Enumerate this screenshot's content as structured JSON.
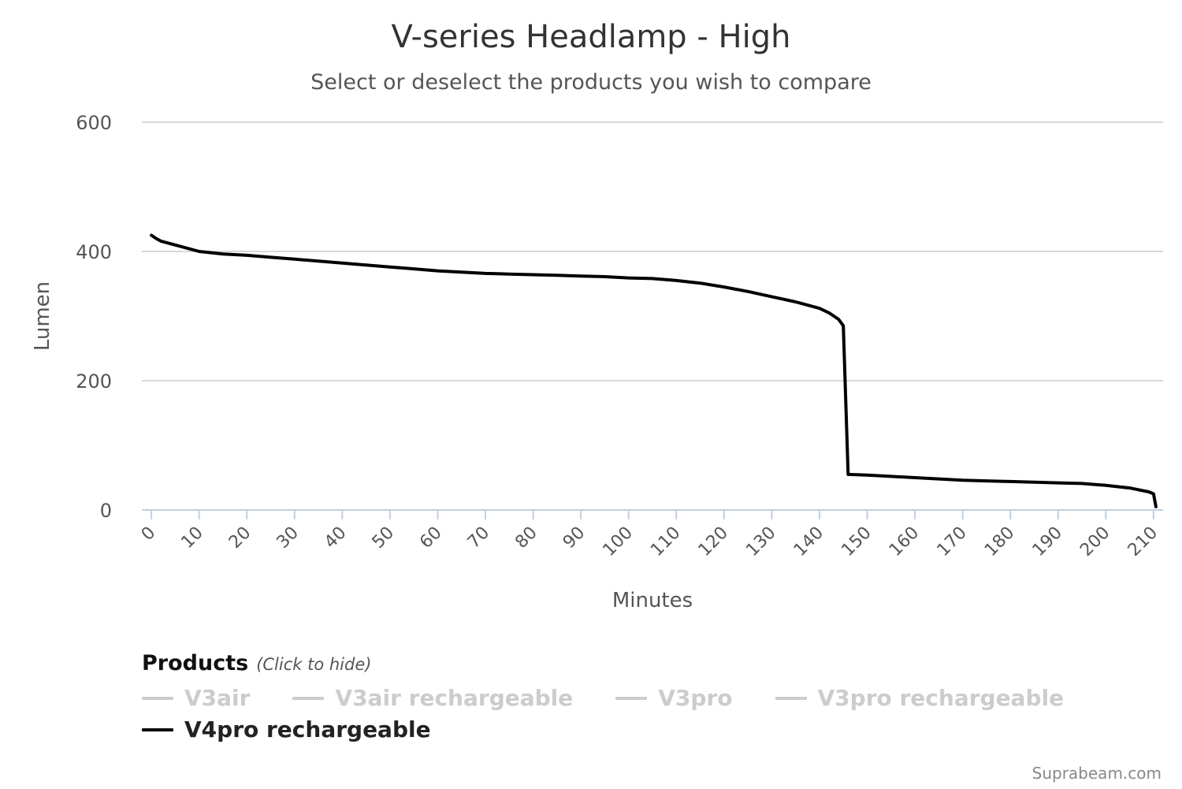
{
  "chart_data": {
    "type": "line",
    "title": "V-series Headlamp - High",
    "subtitle": "Select or deselect the products you wish to compare",
    "xlabel": "Minutes",
    "ylabel": "Lumen",
    "xlim": [
      -2,
      212
    ],
    "ylim": [
      0,
      600
    ],
    "x_ticks": [
      0,
      10,
      20,
      30,
      40,
      50,
      60,
      70,
      80,
      90,
      100,
      110,
      120,
      130,
      140,
      150,
      160,
      170,
      180,
      190,
      200,
      210
    ],
    "y_ticks": [
      0,
      200,
      400,
      600
    ],
    "grid": true,
    "legend_position": "bottom-left",
    "series": [
      {
        "name": "V3air",
        "visible": false,
        "color": "#cccccc",
        "x": [],
        "y": []
      },
      {
        "name": "V3air rechargeable",
        "visible": false,
        "color": "#cccccc",
        "x": [],
        "y": []
      },
      {
        "name": "V3pro",
        "visible": false,
        "color": "#cccccc",
        "x": [],
        "y": []
      },
      {
        "name": "V3pro rechargeable",
        "visible": false,
        "color": "#cccccc",
        "x": [],
        "y": []
      },
      {
        "name": "V4pro rechargeable",
        "visible": true,
        "color": "#000000",
        "x": [
          0,
          1,
          2,
          5,
          10,
          15,
          20,
          25,
          30,
          35,
          40,
          45,
          50,
          55,
          60,
          65,
          70,
          75,
          80,
          85,
          90,
          95,
          100,
          105,
          110,
          115,
          120,
          125,
          130,
          135,
          140,
          142,
          144,
          145,
          146,
          150,
          155,
          160,
          165,
          170,
          175,
          180,
          185,
          190,
          195,
          200,
          205,
          209,
          210,
          210.5
        ],
        "y": [
          425,
          420,
          416,
          410,
          400,
          396,
          394,
          391,
          388,
          385,
          382,
          379,
          376,
          373,
          370,
          368,
          366,
          365,
          364,
          363,
          362,
          361,
          359,
          358,
          355,
          351,
          345,
          338,
          330,
          322,
          312,
          305,
          295,
          285,
          55,
          54,
          52,
          50,
          48,
          46,
          45,
          44,
          43,
          42,
          41,
          38,
          34,
          28,
          25,
          5
        ]
      }
    ]
  },
  "legend": {
    "title": "Products",
    "hint": "(Click to hide)"
  },
  "credits": "Suprabeam.com",
  "colors": {
    "active": "#222222",
    "inactive": "#cccccc",
    "grid": "#d8d8d8",
    "axis": "#c0d0e0"
  }
}
